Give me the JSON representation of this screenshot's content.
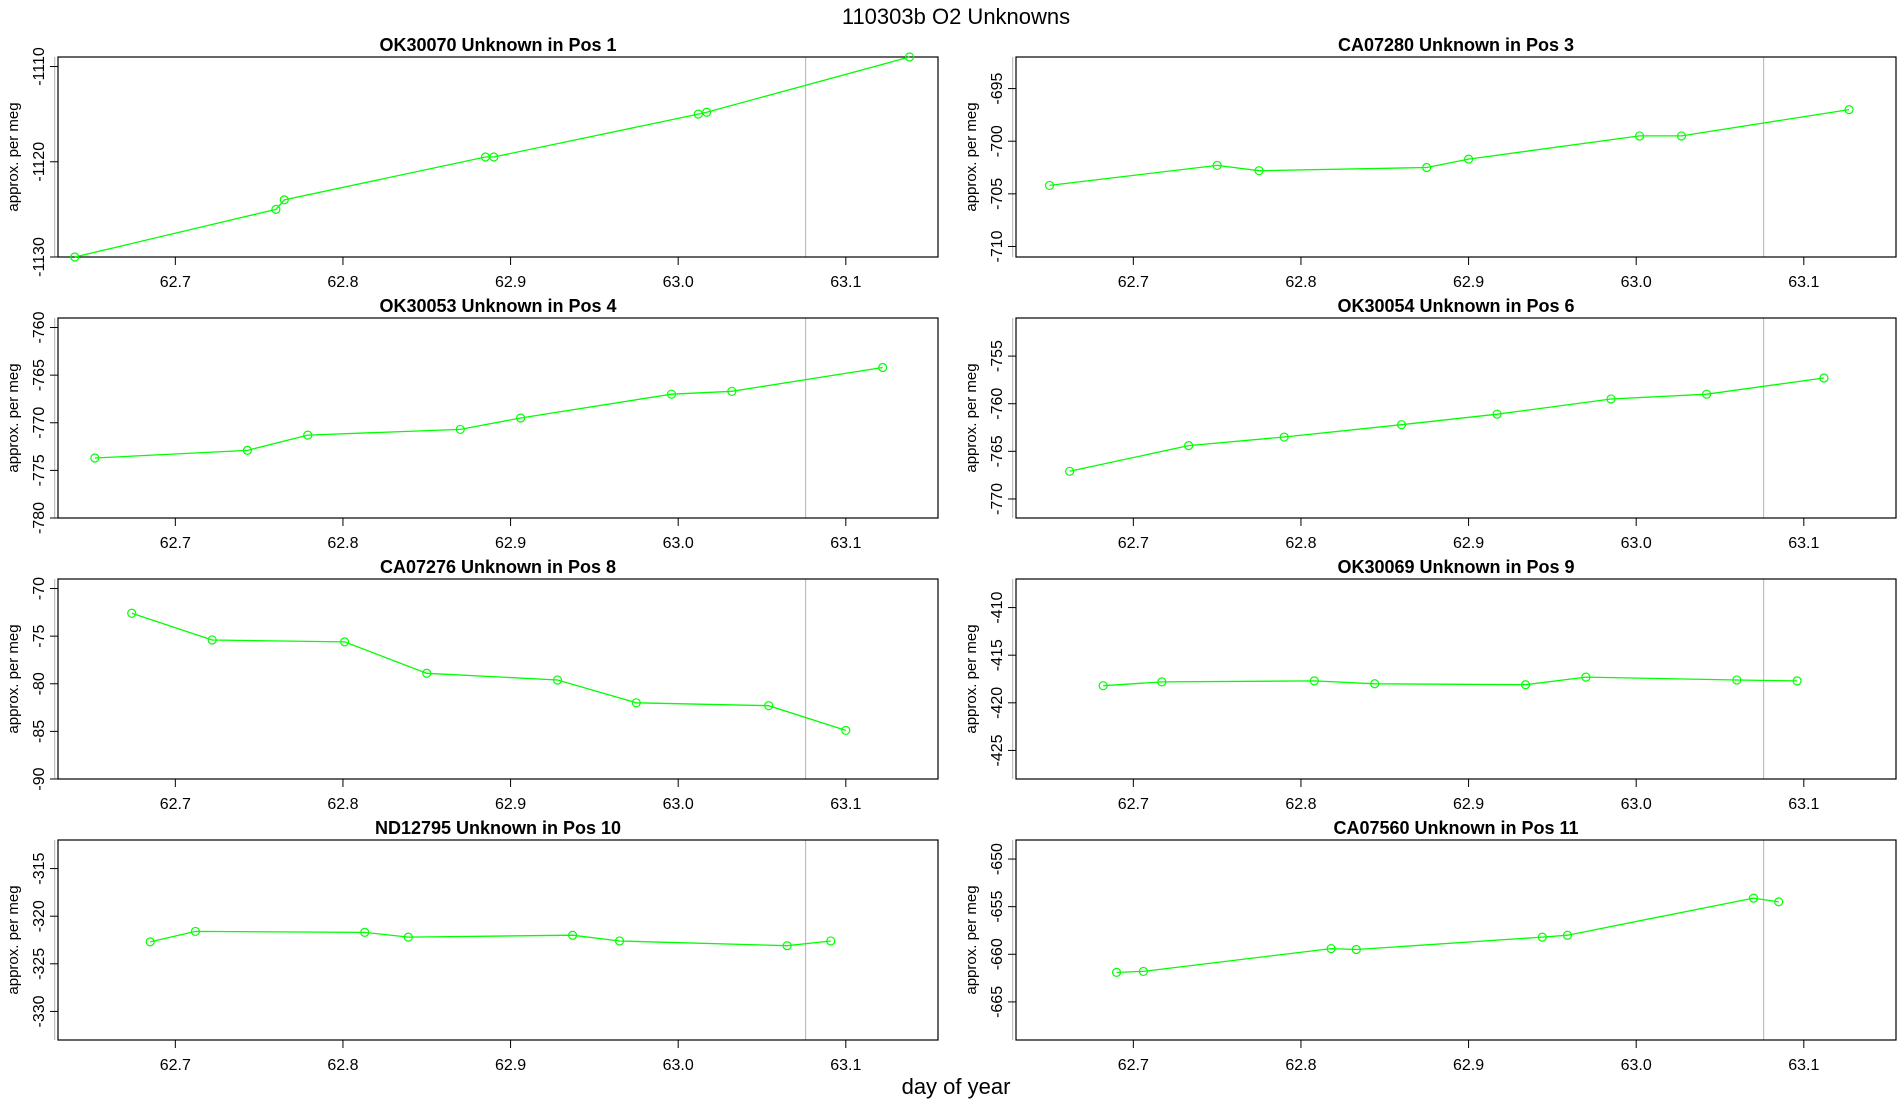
{
  "figure": {
    "title": "110303b  O2 Unknowns",
    "xlabel": "day of year"
  },
  "style": {
    "series_color": "#00ff00",
    "axis_color": "#000000",
    "marker_line_color": "#bebebe"
  },
  "chart_data": [
    {
      "type": "line",
      "title": "OK30070    Unknown in Pos 1",
      "ylabel": "approx. per meg",
      "xlim": [
        62.63,
        63.155
      ],
      "ylim": [
        -1130,
        -1109
      ],
      "xticks": [
        62.7,
        62.8,
        62.9,
        63.0,
        63.1
      ],
      "yticks": [
        -1130,
        -1120,
        -1110
      ],
      "vlines": [
        62.628,
        63.076
      ],
      "grid": false,
      "x": [
        62.64,
        62.76,
        62.765,
        62.885,
        62.89,
        63.012,
        63.017,
        63.138
      ],
      "y": [
        -1130,
        -1125,
        -1124,
        -1119.5,
        -1119.5,
        -1115,
        -1114.8,
        -1109
      ]
    },
    {
      "type": "line",
      "title": "CA07280    Unknown in Pos 3",
      "ylabel": "approx. per meg",
      "xlim": [
        62.63,
        63.155
      ],
      "ylim": [
        -711,
        -692
      ],
      "xticks": [
        62.7,
        62.8,
        62.9,
        63.0,
        63.1
      ],
      "yticks": [
        -710,
        -705,
        -700,
        -695
      ],
      "vlines": [
        62.628,
        63.076
      ],
      "grid": false,
      "x": [
        62.65,
        62.75,
        62.775,
        62.875,
        62.9,
        63.002,
        63.027,
        63.127
      ],
      "y": [
        -704.2,
        -702.3,
        -702.8,
        -702.5,
        -701.7,
        -699.5,
        -699.5,
        -697
      ]
    },
    {
      "type": "line",
      "title": "OK30053    Unknown in Pos 4",
      "ylabel": "approx. per meg",
      "xlim": [
        62.63,
        63.155
      ],
      "ylim": [
        -780,
        -759
      ],
      "xticks": [
        62.7,
        62.8,
        62.9,
        63.0,
        63.1
      ],
      "yticks": [
        -780,
        -775,
        -770,
        -765,
        -760
      ],
      "vlines": [
        62.628,
        63.076
      ],
      "grid": false,
      "x": [
        62.652,
        62.743,
        62.779,
        62.87,
        62.906,
        62.996,
        63.032,
        63.122
      ],
      "y": [
        -773.7,
        -772.9,
        -771.3,
        -770.7,
        -769.5,
        -767,
        -766.7,
        -764.2
      ]
    },
    {
      "type": "line",
      "title": "OK30054    Unknown in Pos 6",
      "ylabel": "approx. per meg",
      "xlim": [
        62.63,
        63.155
      ],
      "ylim": [
        -772,
        -751
      ],
      "xticks": [
        62.7,
        62.8,
        62.9,
        63.0,
        63.1
      ],
      "yticks": [
        -770,
        -765,
        -760,
        -755
      ],
      "vlines": [
        62.628,
        63.076
      ],
      "grid": false,
      "x": [
        62.662,
        62.733,
        62.79,
        62.86,
        62.917,
        62.985,
        63.042,
        63.112
      ],
      "y": [
        -767.1,
        -764.4,
        -763.5,
        -762.2,
        -761.1,
        -759.5,
        -759,
        -757.3
      ]
    },
    {
      "type": "line",
      "title": "CA07276    Unknown in Pos 8",
      "ylabel": "approx. per meg",
      "xlim": [
        62.63,
        63.155
      ],
      "ylim": [
        -90,
        -69
      ],
      "xticks": [
        62.7,
        62.8,
        62.9,
        63.0,
        63.1
      ],
      "yticks": [
        -90,
        -85,
        -80,
        -75,
        -70
      ],
      "vlines": [
        62.628,
        63.076
      ],
      "grid": false,
      "x": [
        62.674,
        62.722,
        62.801,
        62.85,
        62.928,
        62.975,
        63.054,
        63.1
      ],
      "y": [
        -72.6,
        -75.4,
        -75.6,
        -78.9,
        -79.6,
        -82,
        -82.3,
        -84.9
      ]
    },
    {
      "type": "line",
      "title": "OK30069    Unknown in Pos 9",
      "ylabel": "approx. per meg",
      "xlim": [
        62.63,
        63.155
      ],
      "ylim": [
        -428,
        -407
      ],
      "xticks": [
        62.7,
        62.8,
        62.9,
        63.0,
        63.1
      ],
      "yticks": [
        -425,
        -420,
        -415,
        -410
      ],
      "vlines": [
        62.628,
        63.076
      ],
      "grid": false,
      "x": [
        62.682,
        62.717,
        62.808,
        62.844,
        62.934,
        62.97,
        63.06,
        63.096
      ],
      "y": [
        -418.2,
        -417.8,
        -417.7,
        -418,
        -418.1,
        -417.3,
        -417.6,
        -417.7
      ]
    },
    {
      "type": "line",
      "title": "ND12795    Unknown in Pos 10",
      "ylabel": "approx. per meg",
      "xlim": [
        62.63,
        63.155
      ],
      "ylim": [
        -333,
        -312
      ],
      "xticks": [
        62.7,
        62.8,
        62.9,
        63.0,
        63.1
      ],
      "yticks": [
        -330,
        -325,
        -320,
        -315
      ],
      "vlines": [
        62.628,
        63.076
      ],
      "grid": false,
      "x": [
        62.685,
        62.712,
        62.813,
        62.839,
        62.937,
        62.965,
        63.065,
        63.091
      ],
      "y": [
        -322.7,
        -321.6,
        -321.7,
        -322.2,
        -322,
        -322.6,
        -323.1,
        -322.6
      ]
    },
    {
      "type": "line",
      "title": "CA07560    Unknown in Pos 11",
      "ylabel": "approx. per meg",
      "xlim": [
        62.63,
        63.155
      ],
      "ylim": [
        -669,
        -648
      ],
      "xticks": [
        62.7,
        62.8,
        62.9,
        63.0,
        63.1
      ],
      "yticks": [
        -665,
        -660,
        -655,
        -650
      ],
      "vlines": [
        62.628,
        63.076
      ],
      "grid": false,
      "x": [
        62.69,
        62.706,
        62.818,
        62.833,
        62.944,
        62.959,
        63.07,
        63.085
      ],
      "y": [
        -661.9,
        -661.8,
        -659.4,
        -659.5,
        -658.2,
        -658,
        -654.1,
        -654.5
      ]
    }
  ]
}
